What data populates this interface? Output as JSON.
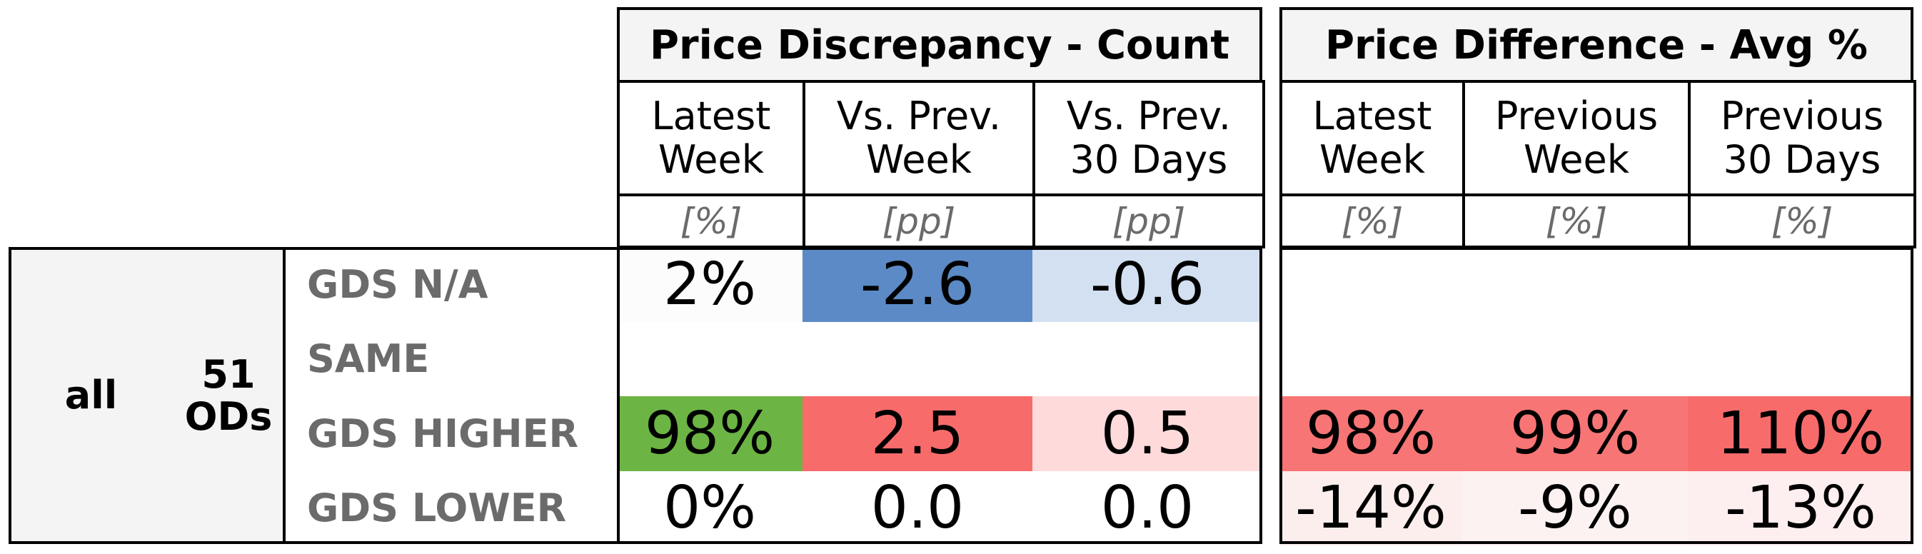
{
  "chart_data": {
    "type": "table",
    "group": {
      "label": "all",
      "count_label": "51\nODs"
    },
    "row_labels": [
      "GDS N/A",
      "SAME",
      "GDS HIGHER",
      "GDS LOWER"
    ],
    "sections": [
      {
        "title": "Price Discrepancy - Count",
        "columns": [
          {
            "header": "Latest\nWeek",
            "unit": "[%]",
            "values": [
              "2%",
              "",
              "98%",
              "0%"
            ],
            "colors": [
              "#fbfcfb",
              "#ffffff",
              "#6cb444",
              "#ffffff"
            ]
          },
          {
            "header": "Vs. Prev.\nWeek",
            "unit": "[pp]",
            "values": [
              "-2.6",
              "",
              "2.5",
              "0.0"
            ],
            "colors": [
              "#5b8ac6",
              "#ffffff",
              "#f86b6b",
              "#ffffff"
            ]
          },
          {
            "header": "Vs. Prev.\n30 Days",
            "unit": "[pp]",
            "values": [
              "-0.6",
              "",
              "0.5",
              "0.0"
            ],
            "colors": [
              "#d3e0f1",
              "#ffffff",
              "#fedadb",
              "#ffffff"
            ]
          }
        ]
      },
      {
        "title": "Price Difference - Avg %",
        "columns": [
          {
            "header": "Latest\nWeek",
            "unit": "[%]",
            "values": [
              "",
              "",
              "98%",
              "-14%"
            ],
            "colors": [
              "#ffffff",
              "#ffffff",
              "#f87575",
              "#fdeeee"
            ]
          },
          {
            "header": "Previous\nWeek",
            "unit": "[%]",
            "values": [
              "",
              "",
              "99%",
              "-9%"
            ],
            "colors": [
              "#ffffff",
              "#ffffff",
              "#f87575",
              "#fdf2f2"
            ]
          },
          {
            "header": "Previous\n30 Days",
            "unit": "[%]",
            "values": [
              "",
              "",
              "110%",
              "-13%"
            ],
            "colors": [
              "#ffffff",
              "#ffffff",
              "#f86b6b",
              "#fdefef"
            ]
          }
        ]
      }
    ]
  }
}
